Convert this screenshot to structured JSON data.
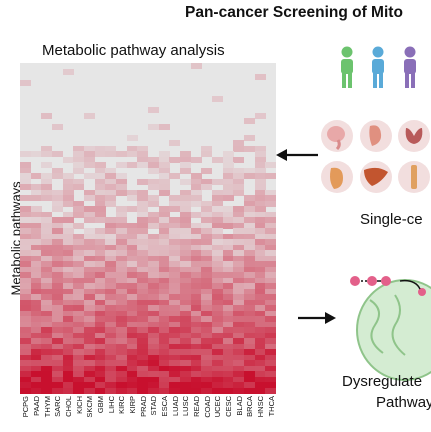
{
  "figure": {
    "title": "Pan-cancer Screening of Mito",
    "subtitle": "Metabolic pathway analysis",
    "y_axis_label": "Metabolic pathways",
    "single_cell_label": "Single-ce",
    "dysregulated_label_line1": "Dysregulate",
    "dysregulated_label_line2": "Pathway"
  },
  "chart_data": {
    "type": "heatmap",
    "title": "Metabolic pathway analysis",
    "ylabel": "Metabolic pathways",
    "columns": [
      "PCPG",
      "PAAD",
      "THYM",
      "SARC",
      "CHOL",
      "KICH",
      "SKCM",
      "GBM",
      "LIHC",
      "KIRC",
      "KIRP",
      "PRAD",
      "STAD",
      "ESCA",
      "LUAD",
      "LUSC",
      "READ",
      "COAD",
      "UCEC",
      "CESC",
      "BLAD",
      "BRCA",
      "HNSC",
      "THCA"
    ]
  },
  "colors": {
    "heat_low": "#e6e6e6",
    "heat_high": "#c8102e",
    "person_green": "#6cc36e",
    "person_blue": "#5aaad8",
    "person_purple": "#8a6fb8",
    "organ_bg": "#f2dede",
    "mito_fill": "#d4ecd2"
  },
  "icons": [
    "person-icon",
    "brain-icon",
    "kidney-icon",
    "thyroid-icon",
    "pancreas-icon",
    "liver-icon",
    "bone-icon",
    "mitochondrion-icon",
    "arrow-left-icon",
    "arrow-right-icon"
  ]
}
